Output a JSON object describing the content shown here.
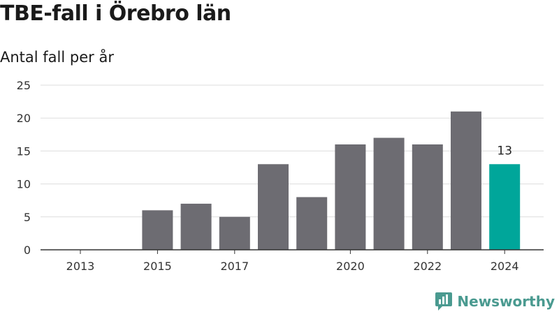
{
  "chart_data": {
    "type": "bar",
    "title": "TBE-fall i Örebro län",
    "subtitle": "Antal fall per år",
    "categories": [
      "2013",
      "2014",
      "2015",
      "2016",
      "2017",
      "2018",
      "2019",
      "2020",
      "2021",
      "2022",
      "2023",
      "2024"
    ],
    "x_tick_labels": [
      "2013",
      "",
      "2015",
      "",
      "2017",
      "",
      "",
      "2020",
      "",
      "2022",
      "",
      "2024"
    ],
    "values": [
      0,
      0,
      6,
      7,
      5,
      13,
      8,
      16,
      17,
      16,
      21,
      13
    ],
    "ylim": [
      0,
      25
    ],
    "y_ticks": [
      0,
      5,
      10,
      15,
      20,
      25
    ],
    "grid": true,
    "highlight_index": 11,
    "data_labels": [
      {
        "index": 11,
        "text": "13"
      }
    ],
    "bar_color": "#6d6c72",
    "highlight_color": "#00a69a"
  },
  "brand": {
    "name": "Newsworthy",
    "color": "#4a9a90",
    "icon": "newsworthy-logo-icon"
  }
}
